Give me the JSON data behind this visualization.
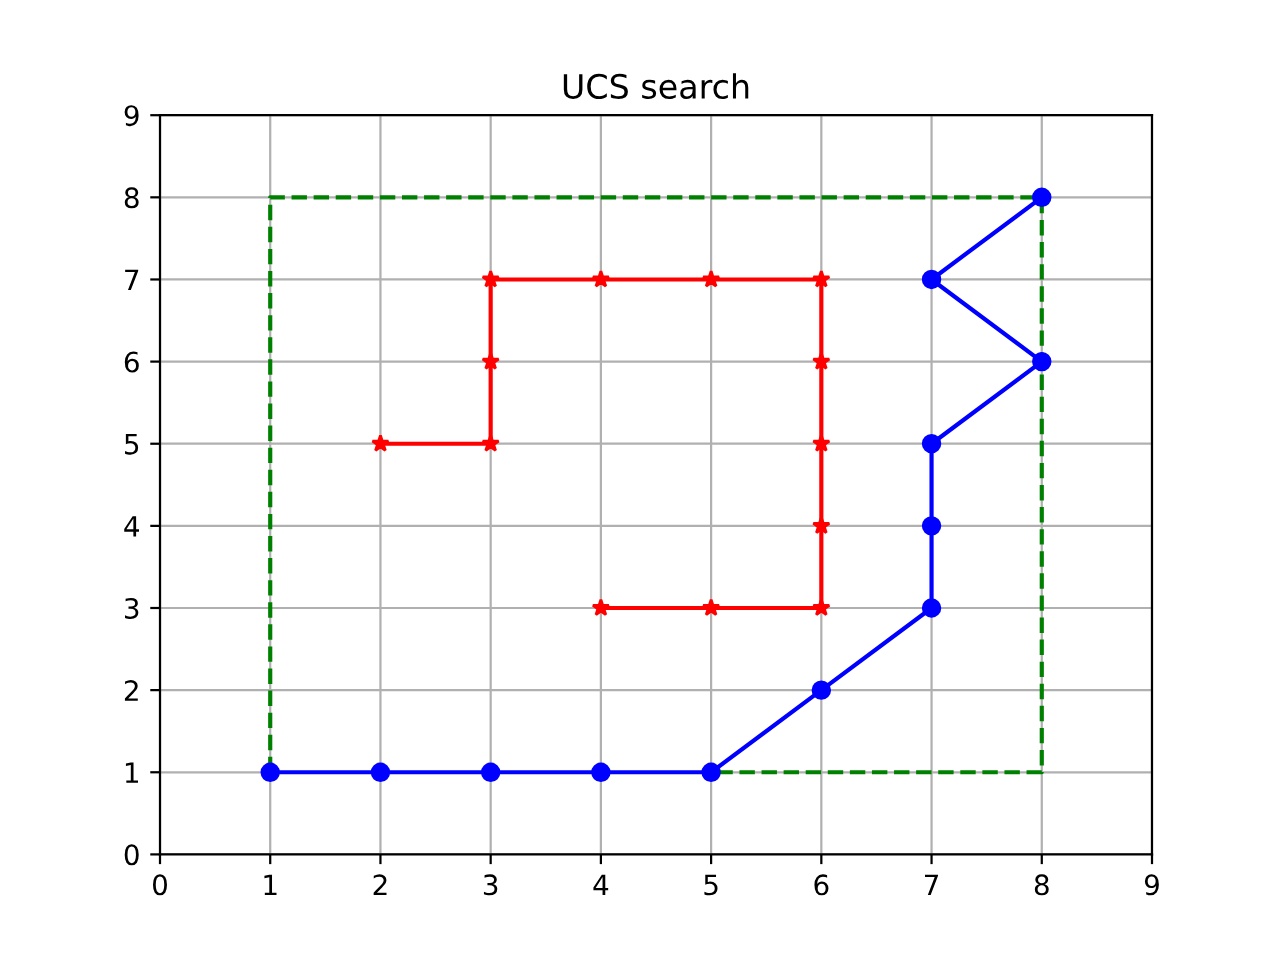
{
  "chart_data": {
    "type": "line",
    "title": "UCS search",
    "series": [
      {
        "color": "#008000",
        "line_style": "dashed",
        "marker": "none",
        "x": [
          1,
          1,
          8,
          8,
          5
        ],
        "values": [
          1,
          8,
          8,
          1,
          1
        ]
      },
      {
        "color": "#ff0000",
        "line_style": "solid",
        "marker": "star",
        "x": [
          2,
          3,
          3,
          3,
          4,
          5,
          6,
          6,
          6,
          6,
          6,
          5,
          4
        ],
        "values": [
          5,
          5,
          6,
          7,
          7,
          7,
          7,
          6,
          5,
          4,
          3,
          3,
          3
        ]
      },
      {
        "color": "#0000ff",
        "line_style": "solid",
        "marker": "circle",
        "x": [
          1,
          2,
          3,
          4,
          5,
          6,
          7,
          7,
          7,
          8,
          7,
          8
        ],
        "values": [
          1,
          1,
          1,
          1,
          1,
          2,
          3,
          4,
          5,
          6,
          7,
          8
        ]
      }
    ],
    "xlim": [
      0,
      9
    ],
    "ylim": [
      0,
      9
    ],
    "xticks": [
      0,
      1,
      2,
      3,
      4,
      5,
      6,
      7,
      8,
      9
    ],
    "yticks": [
      0,
      1,
      2,
      3,
      4,
      5,
      6,
      7,
      8,
      9
    ],
    "grid": true
  }
}
